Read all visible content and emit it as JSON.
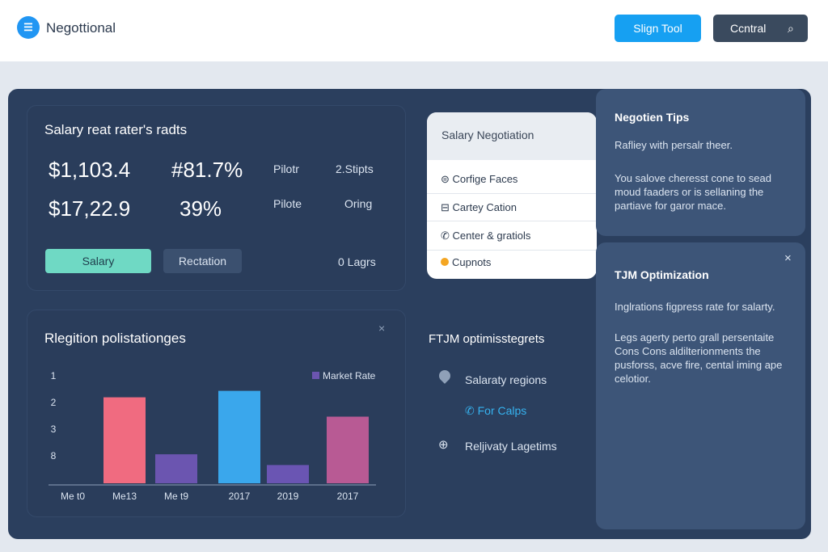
{
  "header": {
    "brand": "Negottional",
    "buttons": [
      "Slign Tool",
      "Ccntral"
    ]
  },
  "summary": {
    "title": "Salary reat rater's radts",
    "rows": [
      [
        "$1,103.4",
        "#81.7%",
        "Pilotr",
        "2.Stipts"
      ],
      [
        "$17,22.9",
        "39%",
        "Pilote",
        "Oring"
      ]
    ],
    "buttons": [
      "Salary",
      "Rectation"
    ],
    "note": "0 Lagrs"
  },
  "menu": {
    "title": "Salary Negotiation",
    "items": [
      "Corfige Faces",
      "Cartey Cation",
      "Center & gratiols",
      "Cupnots"
    ]
  },
  "chart_data": {
    "type": "bar",
    "title": "Rlegition polistationges",
    "categories": [
      "Me t0",
      "Me13",
      "Me t9",
      "2017",
      "2019",
      "2017"
    ],
    "values": [
      null,
      80,
      27,
      86,
      17,
      62
    ],
    "colors": [
      null,
      "#f06b80",
      "#6b55b0",
      "#3aa7ec",
      "#6a55b3",
      "#b85a94"
    ],
    "ylim": [
      0,
      100
    ],
    "y_labels": [
      "1",
      "2",
      "3",
      "8"
    ],
    "legend": {
      "name": "Market Rate",
      "color": "#6b55b0"
    }
  },
  "features": {
    "title": "FTJM optimisstegrets",
    "items": [
      "Salaraty regions",
      "For Calps",
      "Reljivaty Lagetims"
    ]
  },
  "tips": {
    "title": "Negotien Tips",
    "lead": "Rafliey with persalr theer.",
    "lines": [
      "You salove cheresst cone to sead",
      "moud faaders or is sellaning the",
      "partiave for garor mace."
    ]
  },
  "optimization": {
    "title": "TJM Optimization",
    "lead": "Inglrations figpress rate for salarty.",
    "lines": [
      "Legs agerty perto grall persentaite",
      "Cons Cons aldilterionments the",
      "pusforss, acve fire, cental iming ape",
      "celotior."
    ]
  }
}
